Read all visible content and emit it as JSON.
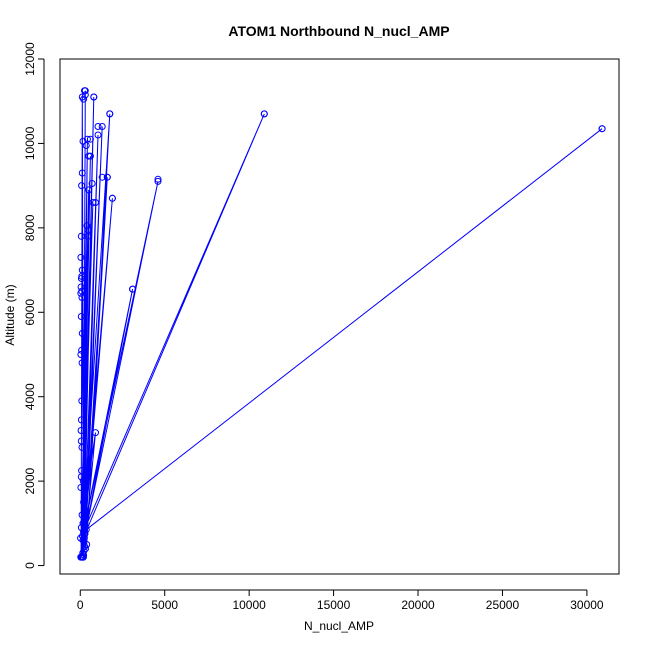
{
  "chart_data": {
    "type": "line",
    "title": "ATOM1 Northbound N_nucl_AMP",
    "xlabel": "N_nucl_AMP",
    "ylabel": "Altitude (m)",
    "xlim": [
      -1200,
      31900
    ],
    "ylim": [
      -200,
      12000
    ],
    "x_ticks": [
      0,
      5000,
      10000,
      15000,
      20000,
      25000,
      30000
    ],
    "y_ticks": [
      0,
      2000,
      4000,
      6000,
      8000,
      10000,
      12000
    ],
    "x_tick_labels": [
      "0",
      "5000",
      "10000",
      "15000",
      "20000",
      "25000",
      "30000"
    ],
    "y_tick_labels": [
      "0",
      "2000",
      "4000",
      "6000",
      "8000",
      "10000",
      "12000"
    ],
    "grid": false,
    "legend": "none",
    "color": "#0000ff",
    "series": [
      {
        "x": [
          50,
          120,
          200,
          300,
          180,
          420,
          90,
          600,
          150,
          800,
          220,
          1050,
          310,
          1300,
          260,
          1600,
          380,
          1750,
          160,
          1900,
          240,
          4600,
          130,
          3100,
          280,
          10900,
          190,
          30900,
          350,
          900,
          70,
          500,
          160,
          750,
          110,
          450,
          200,
          120,
          300,
          90,
          180
        ],
        "y": [
          200,
          11100,
          250,
          11250,
          200,
          10100,
          220,
          9700,
          300,
          11100,
          350,
          10200,
          400,
          10400,
          450,
          9200,
          500,
          10700,
          600,
          8700,
          650,
          9100,
          700,
          6550,
          750,
          10700,
          800,
          10350,
          850,
          3150,
          900,
          8900,
          1000,
          8600,
          1200,
          7800,
          1500,
          7000,
          1800,
          6500,
          2000
        ]
      }
    ],
    "points": {
      "x": [
        30,
        60,
        90,
        120,
        140,
        160,
        180,
        200,
        250,
        300,
        350,
        400,
        450,
        500,
        600,
        700,
        800,
        900,
        1050,
        1300,
        1600,
        1750,
        1900,
        3100,
        4600,
        10900,
        30900,
        20,
        40,
        60,
        80,
        100,
        60,
        50,
        70,
        90,
        110,
        40,
        80,
        120,
        60,
        100,
        30,
        50,
        70,
        90,
        40,
        60,
        80,
        120,
        160
      ],
      "y": [
        200,
        200,
        200,
        200,
        200,
        200,
        200,
        11050,
        11250,
        11150,
        9950,
        8050,
        7950,
        9700,
        10100,
        9050,
        11100,
        8600,
        10400,
        9200,
        9200,
        10700,
        8700,
        6550,
        9150,
        10700,
        10350,
        650,
        1850,
        2100,
        2250,
        2800,
        2950,
        3200,
        3450,
        3900,
        4800,
        5000,
        5100,
        5500,
        5900,
        6350,
        6450,
        6600,
        6800,
        6850,
        7300,
        7800,
        9000,
        9300,
        10050
      ]
    }
  }
}
